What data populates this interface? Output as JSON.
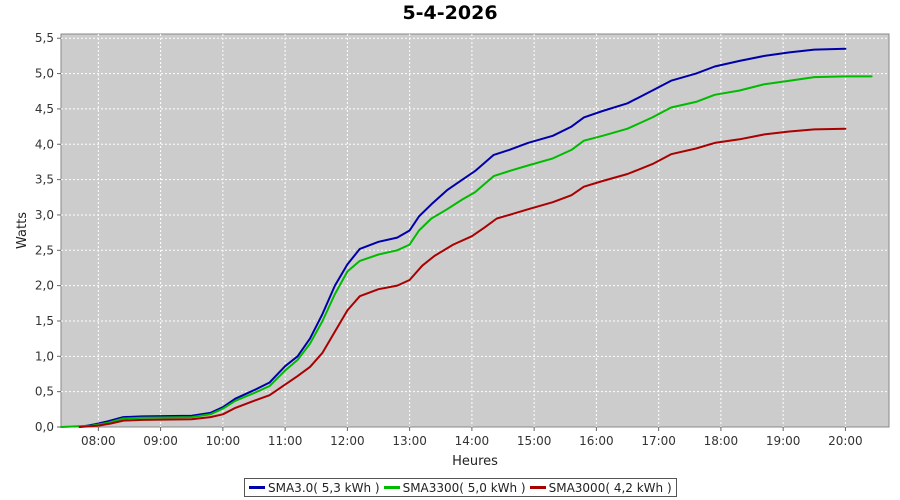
{
  "chart_data": {
    "type": "line",
    "title": "5-4-2026",
    "xlabel": "Heures",
    "ylabel": "Watts",
    "xlim": [
      7.4,
      20.7
    ],
    "ylim": [
      0,
      5.56
    ],
    "grid": true,
    "x_ticks": [
      {
        "v": 8,
        "label": "08:00"
      },
      {
        "v": 9,
        "label": "09:00"
      },
      {
        "v": 10,
        "label": "10:00"
      },
      {
        "v": 11,
        "label": "11:00"
      },
      {
        "v": 12,
        "label": "12:00"
      },
      {
        "v": 13,
        "label": "13:00"
      },
      {
        "v": 14,
        "label": "14:00"
      },
      {
        "v": 15,
        "label": "15:00"
      },
      {
        "v": 16,
        "label": "16:00"
      },
      {
        "v": 17,
        "label": "17:00"
      },
      {
        "v": 18,
        "label": "18:00"
      },
      {
        "v": 19,
        "label": "19:00"
      },
      {
        "v": 20,
        "label": "20:00"
      }
    ],
    "y_ticks": [
      {
        "v": 0,
        "label": "0,0"
      },
      {
        "v": 0.5,
        "label": "0,5"
      },
      {
        "v": 1,
        "label": "1,0"
      },
      {
        "v": 1.5,
        "label": "1,5"
      },
      {
        "v": 2,
        "label": "2,0"
      },
      {
        "v": 2.5,
        "label": "2,5"
      },
      {
        "v": 3,
        "label": "3,0"
      },
      {
        "v": 3.5,
        "label": "3,5"
      },
      {
        "v": 4,
        "label": "4,0"
      },
      {
        "v": 4.5,
        "label": "4,5"
      },
      {
        "v": 5,
        "label": "5,0"
      },
      {
        "v": 5.5,
        "label": "5,5"
      }
    ],
    "legend_position": "bottom",
    "series": [
      {
        "name": "SMA3.0( 5,3 kWh )",
        "color": "#0000aa",
        "points": [
          [
            7.7,
            0
          ],
          [
            7.95,
            0.04
          ],
          [
            8.15,
            0.08
          ],
          [
            8.4,
            0.14
          ],
          [
            8.7,
            0.15
          ],
          [
            9.5,
            0.16
          ],
          [
            9.8,
            0.2
          ],
          [
            10.0,
            0.28
          ],
          [
            10.2,
            0.4
          ],
          [
            10.5,
            0.52
          ],
          [
            10.75,
            0.63
          ],
          [
            11.0,
            0.86
          ],
          [
            11.2,
            1.0
          ],
          [
            11.4,
            1.25
          ],
          [
            11.6,
            1.6
          ],
          [
            11.8,
            2.0
          ],
          [
            12.0,
            2.3
          ],
          [
            12.2,
            2.52
          ],
          [
            12.5,
            2.62
          ],
          [
            12.8,
            2.68
          ],
          [
            13.0,
            2.78
          ],
          [
            13.15,
            2.98
          ],
          [
            13.35,
            3.15
          ],
          [
            13.6,
            3.35
          ],
          [
            13.85,
            3.5
          ],
          [
            14.05,
            3.62
          ],
          [
            14.35,
            3.85
          ],
          [
            14.6,
            3.92
          ],
          [
            14.9,
            4.02
          ],
          [
            15.3,
            4.12
          ],
          [
            15.6,
            4.25
          ],
          [
            15.8,
            4.38
          ],
          [
            16.1,
            4.47
          ],
          [
            16.5,
            4.58
          ],
          [
            16.9,
            4.76
          ],
          [
            17.2,
            4.9
          ],
          [
            17.6,
            5.0
          ],
          [
            17.9,
            5.1
          ],
          [
            18.3,
            5.18
          ],
          [
            18.7,
            5.25
          ],
          [
            19.1,
            5.3
          ],
          [
            19.5,
            5.34
          ],
          [
            20.0,
            5.35
          ]
        ]
      },
      {
        "name": "SMA3300( 5,0 kWh )",
        "color": "#00bb00",
        "points": [
          [
            7.4,
            0
          ],
          [
            7.9,
            0.02
          ],
          [
            8.15,
            0.06
          ],
          [
            8.4,
            0.12
          ],
          [
            8.7,
            0.13
          ],
          [
            9.5,
            0.14
          ],
          [
            9.8,
            0.18
          ],
          [
            10.0,
            0.26
          ],
          [
            10.2,
            0.37
          ],
          [
            10.5,
            0.48
          ],
          [
            10.75,
            0.58
          ],
          [
            11.0,
            0.8
          ],
          [
            11.2,
            0.95
          ],
          [
            11.4,
            1.18
          ],
          [
            11.6,
            1.5
          ],
          [
            11.8,
            1.88
          ],
          [
            12.0,
            2.2
          ],
          [
            12.2,
            2.35
          ],
          [
            12.5,
            2.44
          ],
          [
            12.8,
            2.5
          ],
          [
            13.0,
            2.58
          ],
          [
            13.15,
            2.78
          ],
          [
            13.35,
            2.95
          ],
          [
            13.6,
            3.08
          ],
          [
            13.85,
            3.22
          ],
          [
            14.05,
            3.32
          ],
          [
            14.35,
            3.55
          ],
          [
            14.6,
            3.62
          ],
          [
            14.9,
            3.7
          ],
          [
            15.3,
            3.8
          ],
          [
            15.6,
            3.92
          ],
          [
            15.8,
            4.05
          ],
          [
            16.1,
            4.12
          ],
          [
            16.5,
            4.22
          ],
          [
            16.9,
            4.38
          ],
          [
            17.2,
            4.52
          ],
          [
            17.6,
            4.6
          ],
          [
            17.9,
            4.7
          ],
          [
            18.3,
            4.76
          ],
          [
            18.7,
            4.85
          ],
          [
            19.1,
            4.9
          ],
          [
            19.5,
            4.95
          ],
          [
            20.0,
            4.96
          ],
          [
            20.42,
            4.96
          ]
        ]
      },
      {
        "name": "SMA3000( 4,2 kWh )",
        "color": "#aa0000",
        "points": [
          [
            7.7,
            0
          ],
          [
            8.0,
            0.02
          ],
          [
            8.2,
            0.05
          ],
          [
            8.4,
            0.09
          ],
          [
            8.7,
            0.1
          ],
          [
            9.5,
            0.11
          ],
          [
            9.8,
            0.14
          ],
          [
            10.0,
            0.18
          ],
          [
            10.2,
            0.27
          ],
          [
            10.5,
            0.37
          ],
          [
            10.75,
            0.45
          ],
          [
            11.0,
            0.6
          ],
          [
            11.2,
            0.72
          ],
          [
            11.4,
            0.85
          ],
          [
            11.6,
            1.05
          ],
          [
            11.8,
            1.35
          ],
          [
            12.0,
            1.65
          ],
          [
            12.2,
            1.85
          ],
          [
            12.5,
            1.95
          ],
          [
            12.8,
            2.0
          ],
          [
            13.0,
            2.08
          ],
          [
            13.2,
            2.28
          ],
          [
            13.4,
            2.42
          ],
          [
            13.7,
            2.58
          ],
          [
            14.0,
            2.7
          ],
          [
            14.2,
            2.82
          ],
          [
            14.4,
            2.95
          ],
          [
            14.6,
            3.0
          ],
          [
            14.9,
            3.08
          ],
          [
            15.3,
            3.18
          ],
          [
            15.6,
            3.28
          ],
          [
            15.8,
            3.4
          ],
          [
            16.1,
            3.48
          ],
          [
            16.5,
            3.58
          ],
          [
            16.9,
            3.72
          ],
          [
            17.2,
            3.86
          ],
          [
            17.6,
            3.94
          ],
          [
            17.9,
            4.02
          ],
          [
            18.3,
            4.07
          ],
          [
            18.7,
            4.14
          ],
          [
            19.1,
            4.18
          ],
          [
            19.5,
            4.21
          ],
          [
            20.0,
            4.22
          ]
        ]
      }
    ]
  }
}
